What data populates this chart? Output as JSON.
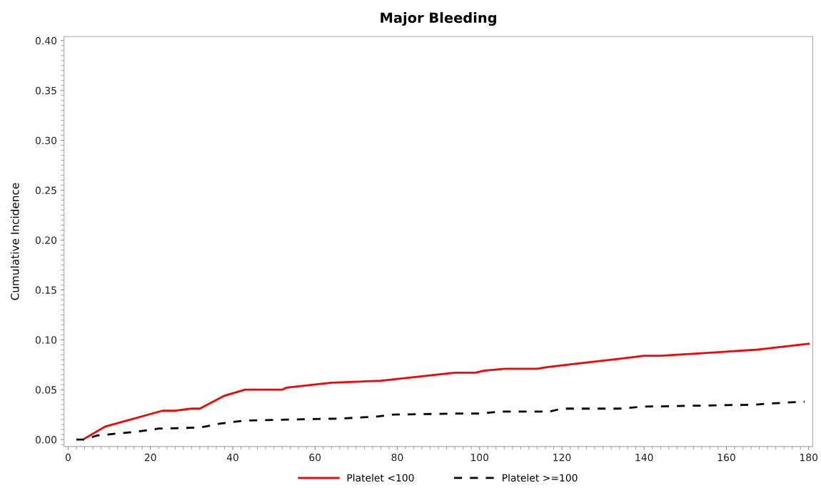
{
  "chart_data": {
    "type": "line",
    "title": "Major Bleeding",
    "ylabel": "Cumulative Incidence",
    "xlim": [
      -1,
      181
    ],
    "xticks": [
      0,
      20,
      40,
      60,
      80,
      100,
      120,
      140,
      160,
      180
    ],
    "ylim": [
      -0.007,
      0.404
    ],
    "yticks": [
      {
        "value": 0,
        "label": "0.00"
      },
      {
        "value": 0.05,
        "label": "0.05"
      },
      {
        "value": 0.1,
        "label": "0.10"
      },
      {
        "value": 0.15,
        "label": "0.15"
      },
      {
        "value": 0.2,
        "label": "0.20"
      },
      {
        "value": 0.25,
        "label": "0.25"
      },
      {
        "value": 0.3,
        "label": "0.30"
      },
      {
        "value": 0.35,
        "label": "0.35"
      },
      {
        "value": 0.4,
        "label": "0.40"
      }
    ],
    "grid": false,
    "legend": "bottom",
    "marker": "none",
    "series": [
      {
        "name": "Platelet <100",
        "color": "#ff0000",
        "line_style": "solid",
        "x": [
          4,
          9,
          23,
          26,
          30,
          32,
          38,
          43,
          52,
          53,
          64,
          76,
          94,
          99,
          101,
          106,
          114,
          117,
          134,
          140,
          144,
          167,
          180
        ],
        "values": [
          0.001,
          0.013,
          0.029,
          0.029,
          0.031,
          0.031,
          0.044,
          0.05,
          0.05,
          0.052,
          0.057,
          0.059,
          0.067,
          0.067,
          0.069,
          0.071,
          0.071,
          0.073,
          0.081,
          0.084,
          0.084,
          0.09,
          0.096
        ]
      },
      {
        "name": "Platelet >=100",
        "color": "#000000",
        "line_style": "dashed",
        "x": [
          2,
          4,
          7,
          17,
          22,
          32,
          37,
          43,
          53,
          66,
          75,
          79,
          94,
          100,
          105,
          117,
          120,
          134,
          140,
          167,
          170,
          179
        ],
        "values": [
          0.0,
          0.0,
          0.004,
          0.008,
          0.011,
          0.012,
          0.016,
          0.019,
          0.02,
          0.021,
          0.023,
          0.025,
          0.026,
          0.026,
          0.028,
          0.028,
          0.031,
          0.031,
          0.033,
          0.035,
          0.036,
          0.038
        ]
      }
    ]
  }
}
